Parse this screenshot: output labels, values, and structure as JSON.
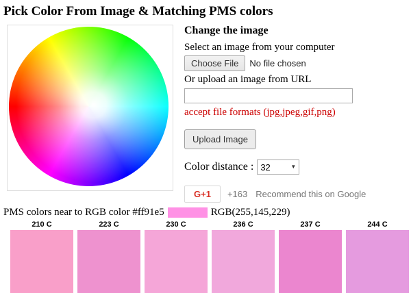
{
  "page": {
    "title": "Pick Color From Image & Matching PMS colors"
  },
  "upload_panel": {
    "heading": "Change the image",
    "select_label": "Select an image from your computer",
    "choose_file_button": "Choose File",
    "no_file_text": "No file chosen",
    "url_label": "Or upload an image from URL",
    "url_input_value": "",
    "formats_note": "accept file formats (jpg,jpeg,gif,png)",
    "formats_note_color": "#cc0000",
    "upload_button": "Upload Image",
    "color_distance_label": "Color distance :",
    "color_distance_value": "32",
    "gplus_button": "G+1",
    "gplus_count": "+163",
    "gplus_text": "Recommend this on Google"
  },
  "result": {
    "label": "PMS colors near to RGB color #ff91e5",
    "swatch_color": "#ff91e5",
    "rgb_text": "RGB(255,145,229)"
  },
  "pms_swatches": [
    {
      "label": "210 C",
      "color": "#f99fc9"
    },
    {
      "label": "223 C",
      "color": "#ee92cf"
    },
    {
      "label": "230 C",
      "color": "#f5a6d8"
    },
    {
      "label": "236 C",
      "color": "#f1a8dc"
    },
    {
      "label": "237 C",
      "color": "#eb86cf"
    },
    {
      "label": "244 C",
      "color": "#e59bdf"
    }
  ]
}
